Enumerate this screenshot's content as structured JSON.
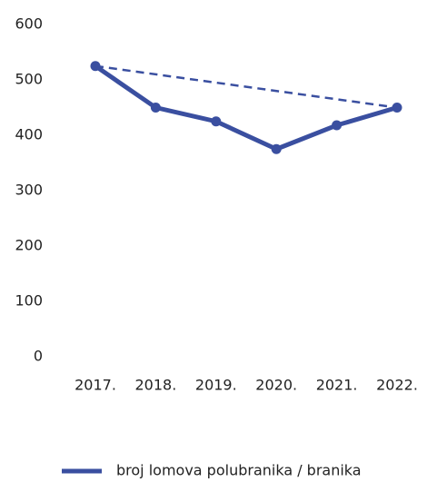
{
  "chart_data": {
    "type": "line",
    "categories": [
      "2017.",
      "2018.",
      "2019.",
      "2020.",
      "2021.",
      "2022."
    ],
    "series": [
      {
        "name": "broj lomova polubranika / branika",
        "color": "#3a4fa0",
        "values": [
          525,
          450,
          425,
          375,
          418,
          450
        ]
      },
      {
        "color": "#3a4fa0",
        "dashed": true,
        "connect_nulls": true,
        "values": [
          525,
          null,
          null,
          null,
          null,
          450
        ]
      }
    ],
    "ylim": [
      0,
      600
    ],
    "yticks": [
      0,
      100,
      200,
      300,
      400,
      500,
      600
    ],
    "grid": false,
    "legend": "bottom"
  }
}
